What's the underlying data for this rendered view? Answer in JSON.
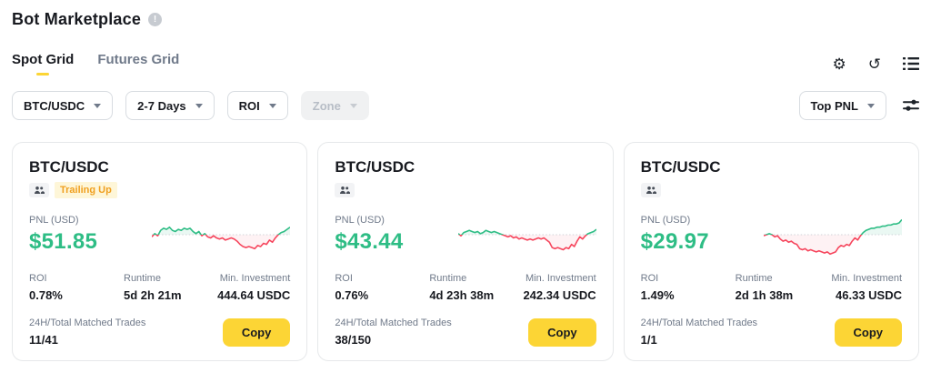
{
  "header": {
    "title": "Bot Marketplace",
    "info_icon_glyph": "!"
  },
  "tabs": {
    "spot": "Spot Grid",
    "futures": "Futures Grid"
  },
  "toolbar": {
    "settings_icon": "⚙",
    "refresh_icon": "↺"
  },
  "filters": {
    "pair": "BTC/USDC",
    "days": "2-7 Days",
    "roi": "ROI",
    "zone": "Zone",
    "sort": "Top PNL"
  },
  "labels": {
    "pnl": "PNL (USD)",
    "roi": "ROI",
    "runtime": "Runtime",
    "min_investment": "Min. Investment",
    "trades": "24H/Total Matched Trades",
    "copy": "Copy"
  },
  "colors": {
    "green": "#2EBD85",
    "red": "#F6465D",
    "yellow": "#FCD535",
    "badge_bg": "#FEF6D8",
    "badge_text": "#F0A020",
    "baseline": "#CFD3D8"
  },
  "cards": [
    {
      "pair": "BTC/USDC",
      "badge": "Trailing Up",
      "pnl": "$51.85",
      "roi": "0.78%",
      "runtime": "5d 2h 21m",
      "min_investment": "444.64 USDC",
      "trades": "11/41",
      "spark": [
        -2,
        1,
        -1,
        4,
        6,
        5,
        7,
        4,
        3,
        5,
        4,
        6,
        5,
        6,
        3,
        1,
        3,
        -1,
        1,
        -2,
        -3,
        -1,
        -3,
        -4,
        -3,
        -5,
        -4,
        -3,
        -4,
        -6,
        -9,
        -11,
        -12,
        -11,
        -12,
        -13,
        -10,
        -11,
        -8,
        -9,
        -5,
        -7,
        -3,
        0,
        2,
        3,
        5,
        7
      ]
    },
    {
      "pair": "BTC/USDC",
      "badge": "",
      "pnl": "$43.44",
      "roi": "0.76%",
      "runtime": "4d 23h 38m",
      "min_investment": "242.34 USDC",
      "trades": "38/150",
      "spark": [
        1,
        -1,
        2,
        3,
        4,
        3,
        2,
        3,
        1,
        2,
        4,
        3,
        2,
        3,
        2,
        1,
        0,
        -1,
        -2,
        -1,
        -3,
        -2,
        -4,
        -3,
        -4,
        -5,
        -4,
        -5,
        -4,
        -3,
        -4,
        -3,
        -5,
        -7,
        -12,
        -13,
        -12,
        -13,
        -14,
        -12,
        -13,
        -9,
        -11,
        -6,
        -2,
        -4,
        -1,
        1,
        2,
        3,
        5
      ]
    },
    {
      "pair": "BTC/USDC",
      "badge": "",
      "pnl": "$29.97",
      "roi": "1.49%",
      "runtime": "2d 1h 38m",
      "min_investment": "46.33 USDC",
      "trades": "1/1",
      "spark": [
        -1,
        0,
        1,
        0,
        -2,
        -1,
        -4,
        -6,
        -5,
        -7,
        -6,
        -8,
        -9,
        -13,
        -14,
        -13,
        -15,
        -14,
        -15,
        -16,
        -15,
        -16,
        -17,
        -16,
        -18,
        -17,
        -16,
        -12,
        -10,
        -11,
        -9,
        -10,
        -6,
        -3,
        -5,
        -1,
        2,
        4,
        5,
        6,
        6,
        7,
        7,
        8,
        8,
        9,
        9,
        10,
        10,
        11,
        14
      ]
    }
  ]
}
